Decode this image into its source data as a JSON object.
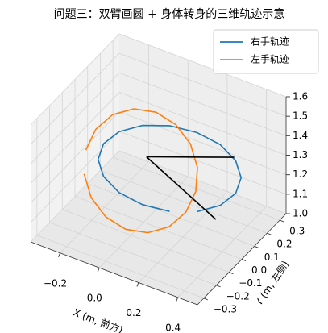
{
  "chart_data": {
    "type": "line3d",
    "title": "问题三：双臂画圆 + 身体转身的三维轨迹示意",
    "xlabel": "X (m, 前方)",
    "ylabel": "Y (m, 左侧)",
    "xlim": [
      -0.35,
      0.5
    ],
    "ylim": [
      -0.35,
      0.35
    ],
    "zlim": [
      1.0,
      1.6
    ],
    "xticks": [
      {
        "value": -0.2,
        "label": "−0.2"
      },
      {
        "value": 0,
        "label": "0.0"
      },
      {
        "value": 0.2,
        "label": "0.2"
      },
      {
        "value": 0.4,
        "label": "0.4"
      }
    ],
    "yticks": [
      {
        "value": -0.3,
        "label": "−0.3"
      },
      {
        "value": -0.2,
        "label": "−0.2"
      },
      {
        "value": -0.1,
        "label": "−0.1"
      },
      {
        "value": 0,
        "label": "0.0"
      },
      {
        "value": 0.1,
        "label": "0.1"
      },
      {
        "value": 0.2,
        "label": "0.2"
      },
      {
        "value": 0.3,
        "label": "0.3"
      }
    ],
    "zticks": [
      {
        "value": 1,
        "label": "1.0"
      },
      1.1,
      1.2,
      1.3,
      1.4,
      1.5,
      1.6
    ],
    "grid": true,
    "legend": "upper right",
    "series": [
      {
        "name": "右手轨迹",
        "color": "#1f77b4",
        "x": [
          0.1,
          -0.015,
          -0.112,
          -0.177,
          -0.2,
          -0.177,
          -0.112,
          -0.015,
          0.1,
          0.215,
          0.312,
          0.377,
          0.4,
          0.377,
          0.312,
          0.215
        ],
        "y": [
          0.05,
          0.012,
          -0.021,
          -0.042,
          -0.05,
          -0.042,
          -0.021,
          0.012,
          0.05,
          0.088,
          0.121,
          0.142,
          0.15,
          0.142,
          0.121,
          0.088
        ],
        "z": [
          1.06,
          1.077,
          1.124,
          1.196,
          1.28,
          1.364,
          1.436,
          1.483,
          1.5,
          1.483,
          1.436,
          1.364,
          1.28,
          1.196,
          1.124,
          1.077
        ]
      },
      {
        "name": "左手轨迹",
        "color": "#ff7f0e",
        "x": [
          -0.23,
          -0.209,
          -0.148,
          -0.057,
          0.05,
          0.157,
          0.248,
          0.309,
          0.33,
          0.309,
          0.248,
          0.157,
          0.05,
          -0.057,
          -0.148,
          -0.209
        ],
        "y": [
          -0.1,
          -0.054,
          -0.015,
          0.011,
          0.02,
          0.011,
          -0.015,
          -0.054,
          -0.1,
          -0.146,
          -0.185,
          -0.211,
          -0.22,
          -0.211,
          -0.185,
          -0.146
        ],
        "z": [
          1.35,
          1.434,
          1.506,
          1.553,
          1.57,
          1.553,
          1.506,
          1.434,
          1.35,
          1.266,
          1.194,
          1.147,
          1.13,
          1.147,
          1.194,
          1.266
        ]
      },
      {
        "color": "#000000",
        "x": [
          -0.05,
          0.3
        ],
        "y": [
          0.1,
          0.25
        ],
        "z": [
          1.25,
          1.28
        ]
      },
      {
        "color": "#000000",
        "x": [
          -0.05,
          0.4
        ],
        "y": [
          0.1,
          -0.05
        ],
        "z": [
          1.25,
          1.2
        ]
      }
    ]
  }
}
